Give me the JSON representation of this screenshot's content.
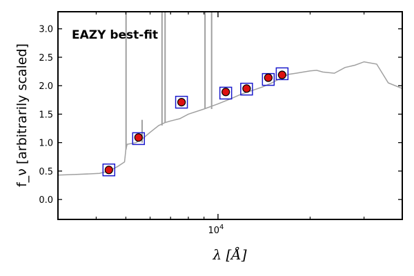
{
  "chart_data": {
    "type": "scatter",
    "title": "",
    "annotation": "EAZY best-fit",
    "annotation_color": "#ff0000",
    "xlabel": "λ [Å]",
    "ylabel": "f_ν [arbitrarily scaled]",
    "xscale": "log",
    "xlim": [
      3000,
      40000
    ],
    "ylim": [
      -0.35,
      3.3
    ],
    "yticks": [
      0.0,
      0.5,
      1.0,
      1.5,
      2.0,
      2.5,
      3.0
    ],
    "ytick_labels": [
      "0.0",
      "0.5",
      "1.0",
      "1.5",
      "2.0",
      "2.5",
      "3.0"
    ],
    "xtick_major": [
      10000
    ],
    "xtick_labels": [
      "10^4"
    ],
    "xtick_minor": [
      4000,
      5000,
      6000,
      7000,
      8000,
      9000,
      20000,
      30000,
      40000
    ],
    "grid": false,
    "colors": {
      "model": "#a0a0a0",
      "photometry_fill": "#dd1111",
      "photometry_edge": "#000000",
      "model_box": "#1a1acc"
    },
    "series": [
      {
        "name": "observed photometry",
        "x": [
          4400,
          5500,
          7600,
          10600,
          12400,
          14600,
          16200
        ],
        "y": [
          0.52,
          1.09,
          1.71,
          1.89,
          1.95,
          2.14,
          2.19
        ]
      },
      {
        "name": "model fluxes",
        "x": [
          4400,
          5500,
          7600,
          10600,
          12400,
          14600,
          16200
        ],
        "y": [
          0.52,
          1.07,
          1.71,
          1.87,
          1.94,
          2.11,
          2.21
        ]
      },
      {
        "name": "EAZY best-fit template",
        "x": [
          3000,
          3400,
          3800,
          4100,
          4400,
          4700,
          4950,
          5000,
          5050,
          5400,
          5700,
          6000,
          6400,
          6700,
          7000,
          7500,
          8000,
          9000,
          10000,
          11000,
          12000,
          13000,
          14000,
          15000,
          16000,
          17000,
          18000,
          19000,
          20000,
          21000,
          22000,
          24000,
          26000,
          28000,
          30000,
          33000,
          36000,
          40000
        ],
        "y": [
          0.43,
          0.44,
          0.45,
          0.46,
          0.5,
          0.58,
          0.66,
          0.88,
          0.97,
          1.0,
          1.08,
          1.18,
          1.3,
          1.35,
          1.38,
          1.42,
          1.5,
          1.59,
          1.68,
          1.77,
          1.86,
          1.92,
          1.98,
          2.05,
          2.13,
          2.2,
          2.22,
          2.24,
          2.26,
          2.27,
          2.24,
          2.22,
          2.32,
          2.36,
          2.42,
          2.38,
          2.05,
          1.95
        ]
      }
    ],
    "emission_lines": [
      {
        "x": 5007,
        "y": 3.3
      },
      {
        "x": 5650,
        "y": 1.4
      },
      {
        "x": 6563,
        "y": 3.3
      },
      {
        "x": 6716,
        "y": 3.3
      },
      {
        "x": 9069,
        "y": 3.3
      },
      {
        "x": 9532,
        "y": 3.3
      }
    ]
  }
}
